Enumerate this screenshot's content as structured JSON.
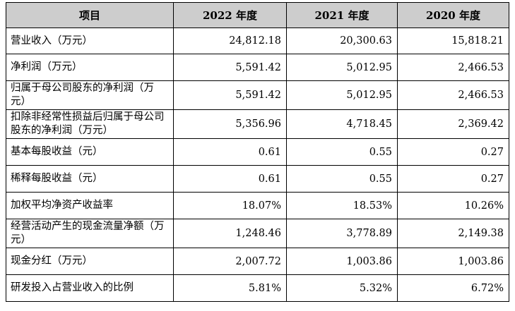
{
  "table": {
    "headers": [
      "项目",
      "2022 年度",
      "2021 年度",
      "2020 年度"
    ],
    "rows": [
      {
        "label": "营业收入（万元）",
        "values": [
          "24,812.18",
          "20,300.63",
          "15,818.21"
        ]
      },
      {
        "label": "净利润（万元）",
        "values": [
          "5,591.42",
          "5,012.95",
          "2,466.53"
        ]
      },
      {
        "label": "归属于母公司股东的净利润（万元）",
        "values": [
          "5,591.42",
          "5,012.95",
          "2,466.53"
        ]
      },
      {
        "label": "扣除非经常性损益后归属于母公司股东的净利润（万元）",
        "values": [
          "5,356.96",
          "4,718.45",
          "2,369.42"
        ]
      },
      {
        "label": "基本每股收益（元）",
        "values": [
          "0.61",
          "0.55",
          "0.27"
        ]
      },
      {
        "label": "稀释每股收益（元）",
        "values": [
          "0.61",
          "0.55",
          "0.27"
        ]
      },
      {
        "label": "加权平均净资产收益率",
        "values": [
          "18.07%",
          "18.53%",
          "10.26%"
        ]
      },
      {
        "label": "经营活动产生的现金流量净额（万元）",
        "values": [
          "1,248.46",
          "3,778.89",
          "2,149.38"
        ]
      },
      {
        "label": "现金分红（万元）",
        "values": [
          "2,007.72",
          "1,003.86",
          "1,003.86"
        ]
      },
      {
        "label": "研发投入占营业收入的比例",
        "values": [
          "5.81%",
          "5.32%",
          "6.72%"
        ]
      }
    ]
  }
}
